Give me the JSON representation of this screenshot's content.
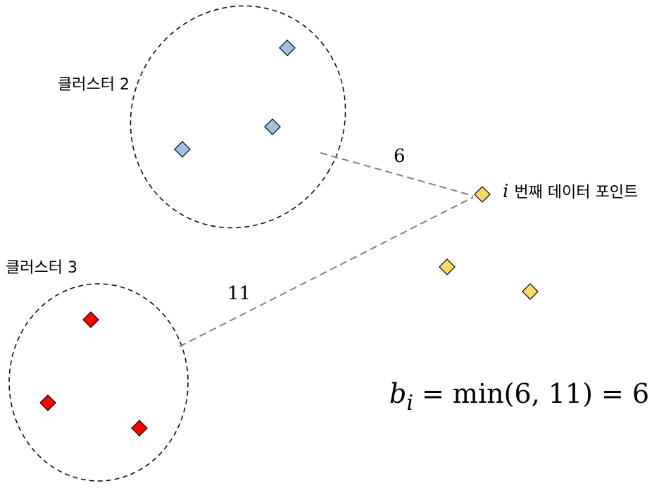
{
  "clusters": [
    {
      "label": "클러스터 2",
      "point_color": "#9DC3E6"
    },
    {
      "label": "클러스터 3",
      "point_color": "#FF0000"
    }
  ],
  "target_point": {
    "italic_prefix": "i",
    "label": "번째 데이터 포인트",
    "color": "#FFD966"
  },
  "distances": {
    "to_cluster_2": "6",
    "to_cluster_3": "11"
  },
  "formula": {
    "lhs_var": "b",
    "lhs_sub": "i",
    "text": " = min(6, 11) = 6"
  }
}
